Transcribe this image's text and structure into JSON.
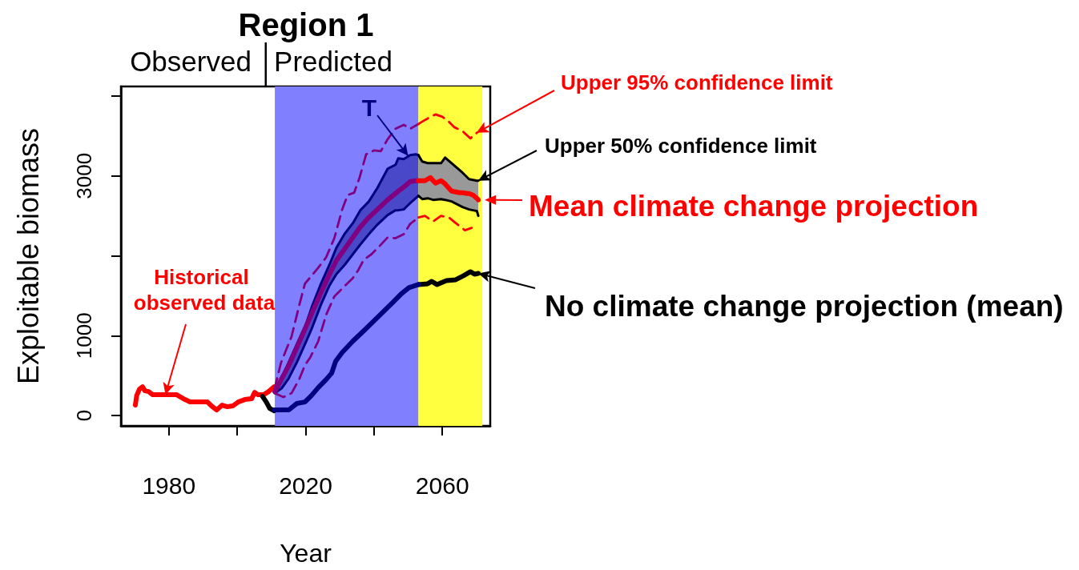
{
  "chart_data": {
    "type": "line",
    "title": "Region 1",
    "xlabel": "Year",
    "ylabel": "Exploitable biomass",
    "annotations": [
      "Observed",
      "Predicted",
      {
        "text": "Historical observed data",
        "x": 1979,
        "y": 260
      },
      {
        "text": "T",
        "x": 2050,
        "y": 3250
      },
      {
        "text": "Upper 95% confidence limit",
        "x": 2070,
        "y": 3540
      },
      {
        "text": "Upper 50% confidence limit",
        "x": 2070.5,
        "y": 2940
      },
      {
        "text": "Mean climate change projection",
        "x": 2070.5,
        "y": 2700
      },
      {
        "text": "No climate change projection (mean)",
        "x": 2070.5,
        "y": 1780
      }
    ],
    "xlim": [
      1966,
      2074
    ],
    "xticks": [
      1980,
      {
        "value": 2000,
        "label": null
      },
      2020,
      {
        "value": 2040,
        "label": null
      },
      2060
    ],
    "ylim": [
      -130,
      4120
    ],
    "yticks": [
      0,
      1000,
      {
        "value": 2000,
        "label": null
      },
      3000,
      {
        "value": 4000,
        "label": null
      }
    ],
    "grid": false,
    "marker": "none",
    "bands": [
      {
        "axis": "x",
        "from": 2011,
        "to": 2053,
        "color": "#8080ff"
      },
      {
        "axis": "x",
        "from": 2053,
        "to": 2071.7,
        "color": "#ffff40"
      }
    ],
    "series": [
      {
        "color": "#ff0000",
        "x": [
          1970.2,
          1970.6,
          1971.4,
          1972.3,
          1973,
          1974.1,
          1975.3,
          1982.3,
          1984.7,
          1986.2,
          1991.3,
          1992.5,
          1994,
          1995.6,
          1997.1,
          1998.7,
          2000.3,
          2002.2,
          2004.2,
          2005.1,
          2006.1,
          2007.7,
          2009.2,
          2010.8
        ],
        "values": [
          130,
          250,
          330,
          360,
          310,
          300,
          260,
          260,
          200,
          170,
          170,
          120,
          70,
          130,
          110,
          120,
          170,
          200,
          210,
          290,
          260,
          260,
          300,
          360
        ]
      },
      {
        "color": "#000000",
        "x": [
          2007.4,
          2008.5,
          2009.5,
          2010.8,
          2030,
          2053,
          2055.7,
          2056.9,
          2058.4,
          2061.2,
          2063.9,
          2066.2,
          2068.2,
          2069.4,
          2070.5
        ],
        "values": [
          240,
          170,
          90,
          60,
          null,
          1640,
          1650,
          1680,
          1640,
          1690,
          1700,
          1750,
          1800,
          1770,
          1780
        ]
      },
      {
        "color": "#000080",
        "x": [
          2010.9,
          2015.1,
          2017.4,
          2019.8,
          2021.7,
          2023.7,
          2026,
          2027.6,
          2028.8,
          2030.7,
          2033.8,
          2037,
          2040.1,
          2043.2,
          2045.6,
          2047.9,
          2050.2,
          2053
        ],
        "values": [
          70,
          70,
          150,
          170,
          250,
          350,
          450,
          530,
          680,
          790,
          930,
          1060,
          1190,
          1320,
          1420,
          1520,
          1600,
          1640
        ]
      },
      {
        "color": "#000080",
        "x": [
          2011,
          2013,
          2015,
          2017.5,
          2020,
          2022,
          2024.5,
          2027,
          2029,
          2031.5,
          2034,
          2036,
          2038.5,
          2041,
          2044,
          2046.3,
          2047.1,
          2048.7,
          2050.6,
          2052.2,
          2053
        ],
        "values": [
          330,
          470,
          660,
          900,
          1130,
          1380,
          1650,
          1890,
          2100,
          2280,
          2420,
          2570,
          2680,
          2850,
          3090,
          3140,
          3220,
          3210,
          3260,
          3270,
          3260
        ]
      },
      {
        "color": "#000080",
        "x": [
          2011,
          2013,
          2015,
          2017.5,
          2020,
          2022,
          2024.5,
          2027,
          2029,
          2031.5,
          2034,
          2036,
          2038.5,
          2041,
          2044,
          2046.3,
          2047.1,
          2048.7,
          2050.6,
          2052.2,
          2053
        ],
        "values": [
          280,
          340,
          460,
          670,
          910,
          1110,
          1390,
          1630,
          1770,
          1890,
          2030,
          2140,
          2270,
          2390,
          2510,
          2570,
          2570,
          2580,
          2660,
          2720,
          2750
        ]
      },
      {
        "color": "#000000",
        "x": [
          2053,
          2054.1,
          2055.7,
          2057.3,
          2059.6,
          2060.8,
          2062.7,
          2065.9,
          2067.8,
          2070.1,
          2070.5
        ],
        "values": [
          3260,
          3180,
          3160,
          3160,
          3160,
          3230,
          3160,
          3040,
          2960,
          2940,
          2940
        ]
      },
      {
        "color": "#000000",
        "x": [
          2053,
          2054.1,
          2055.7,
          2057.3,
          2059.6,
          2060.8,
          2062.7,
          2065.9,
          2067.8,
          2070.1,
          2070.5
        ],
        "values": [
          2750,
          2710,
          2720,
          2700,
          2710,
          2700,
          2680,
          2610,
          2580,
          2560,
          2500
        ]
      },
      {
        "color": "#800080",
        "line_style": "dashed",
        "x": [
          2010.9,
          2012.8,
          2015.9,
          2018.2,
          2019.8,
          2023.7,
          2026,
          2028.4,
          2030.7,
          2032.3,
          2034.2,
          2035.8,
          2037.7,
          2040.1,
          2042,
          2044,
          2046.3,
          2048.7,
          2050.6,
          2053
        ],
        "values": [
          330,
          660,
          990,
          1390,
          1650,
          1850,
          1980,
          2220,
          2580,
          2760,
          2790,
          2980,
          3270,
          3320,
          3310,
          3460,
          3590,
          3640,
          3590,
          3650
        ]
      },
      {
        "color": "#800080",
        "line_style": "dashed",
        "x": [
          2010.9,
          2013.5,
          2015.9,
          2018.2,
          2019.8,
          2021.4,
          2023.7,
          2026,
          2028.4,
          2030.7,
          2033.8,
          2035.4,
          2037,
          2039.3,
          2041.6,
          2044,
          2046.3,
          2048.7,
          2050.6,
          2053
        ],
        "values": [
          280,
          230,
          280,
          460,
          630,
          730,
          930,
          1260,
          1490,
          1590,
          1720,
          1820,
          1950,
          2020,
          2120,
          2230,
          2220,
          2270,
          2400,
          2480
        ]
      },
      {
        "color": "#ff0000",
        "line_style": "dashed",
        "x": [
          2053,
          2054.9,
          2058,
          2060,
          2061.6,
          2063.5,
          2065.9,
          2068.2,
          2070.1
        ],
        "values": [
          3650,
          3700,
          3770,
          3740,
          3690,
          3610,
          3560,
          3470,
          3540
        ]
      },
      {
        "color": "#ff0000",
        "line_style": "dashed",
        "x": [
          2053,
          2054.9,
          2057.3,
          2059.6,
          2061.9,
          2063.9,
          2066.6,
          2068.6
        ],
        "values": [
          2480,
          2500,
          2430,
          2500,
          2480,
          2410,
          2320,
          2350
        ]
      },
      {
        "color": "#800080",
        "x": [
          2011,
          2013,
          2015,
          2017.5,
          2020,
          2022,
          2024.5,
          2027,
          2029,
          2031.5,
          2034,
          2036,
          2038.5,
          2041,
          2044,
          2046.3,
          2047.1,
          2048.7,
          2050.6,
          2052.2,
          2053
        ],
        "values": [
          300,
          460,
          620,
          860,
          1100,
          1300,
          1540,
          1770,
          1940,
          2090,
          2240,
          2360,
          2480,
          2580,
          2700,
          2780,
          2810,
          2860,
          2930,
          2940,
          2940
        ],
        "lower": [
          280,
          340,
          460,
          670,
          910,
          1110,
          1390,
          1630,
          1770,
          1890,
          2030,
          2140,
          2270,
          2390,
          2510,
          2570,
          2570,
          2580,
          2660,
          2720,
          2750
        ],
        "upper": [
          330,
          470,
          660,
          900,
          1130,
          1380,
          1650,
          1890,
          2100,
          2280,
          2420,
          2570,
          2680,
          2850,
          3090,
          3140,
          3220,
          3210,
          3260,
          3270,
          3260
        ]
      },
      {
        "color": "#ff0000",
        "x": [
          2053,
          2054.1,
          2054.9,
          2055.7,
          2056.5,
          2057.3,
          2058,
          2059.6,
          2060.8,
          2061.2,
          2062.7,
          2065.1,
          2065.9,
          2067.4,
          2067.8,
          2069,
          2070.1,
          2070.5
        ],
        "values": [
          2940,
          2940,
          2940,
          2960,
          2980,
          2940,
          2910,
          2940,
          2900,
          2880,
          2810,
          2790,
          2790,
          2780,
          2780,
          2760,
          2720,
          2700
        ],
        "lower": [
          2750,
          2710,
          2720,
          2720,
          2710,
          2700,
          2700,
          2710,
          2700,
          2700,
          2680,
          2630,
          2610,
          2590,
          2580,
          2570,
          2560,
          2500
        ],
        "upper": [
          3260,
          3180,
          3170,
          3160,
          3160,
          3160,
          3160,
          3160,
          3230,
          3220,
          3160,
          3070,
          3040,
          2980,
          2960,
          2950,
          2940,
          2940
        ]
      }
    ]
  }
}
